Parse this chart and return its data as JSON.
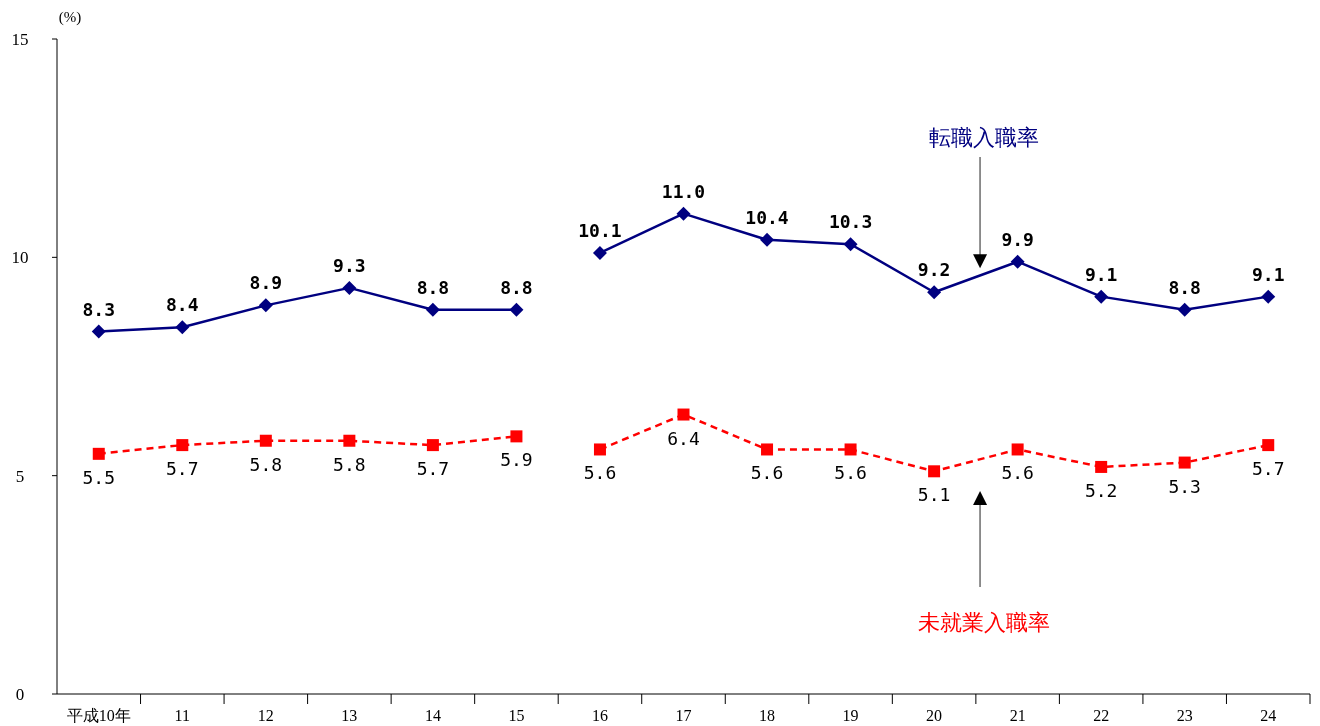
{
  "chart_data": {
    "type": "line",
    "ylabel": "(%)",
    "categories": [
      "平成10年",
      "11",
      "12",
      "13",
      "14",
      "15",
      "16",
      "17",
      "18",
      "19",
      "20",
      "21",
      "22",
      "23",
      "24"
    ],
    "series": [
      {
        "color": "#000080",
        "marker": "diamond",
        "line_style": "solid",
        "values": [
          8.3,
          8.4,
          8.9,
          9.3,
          8.8,
          8.8,
          null,
          null,
          null,
          null,
          null,
          null,
          null,
          null,
          null
        ],
        "value_labels": [
          "8.3",
          "8.4",
          "8.9",
          "9.3",
          "8.8",
          "8.8",
          null,
          null,
          null,
          null,
          null,
          null,
          null,
          null,
          null
        ]
      },
      {
        "name": "転職入職率",
        "color": "#000080",
        "marker": "diamond",
        "line_style": "solid",
        "values": [
          null,
          null,
          null,
          null,
          null,
          null,
          10.1,
          11.0,
          10.4,
          10.3,
          9.2,
          9.9,
          9.1,
          8.8,
          9.1
        ],
        "value_labels": [
          null,
          null,
          null,
          null,
          null,
          null,
          "10.1",
          "11.0",
          "10.4",
          "10.3",
          "9.2",
          "9.9",
          "9.1",
          "8.8",
          "9.1"
        ]
      },
      {
        "color": "#ff0000",
        "marker": "square",
        "line_style": "dashed",
        "values": [
          5.5,
          5.7,
          5.8,
          5.8,
          5.7,
          5.9,
          null,
          null,
          null,
          null,
          null,
          null,
          null,
          null,
          null
        ],
        "value_labels": [
          "5.5",
          "5.7",
          "5.8",
          "5.8",
          "5.7",
          "5.9",
          null,
          null,
          null,
          null,
          null,
          null,
          null,
          null,
          null
        ]
      },
      {
        "name": "未就業入職率",
        "color": "#ff0000",
        "marker": "square",
        "line_style": "dashed",
        "values": [
          null,
          null,
          null,
          null,
          null,
          null,
          5.6,
          6.4,
          5.6,
          5.6,
          5.1,
          5.6,
          5.2,
          5.3,
          5.7
        ],
        "value_labels": [
          null,
          null,
          null,
          null,
          null,
          null,
          "5.6",
          "6.4",
          "5.6",
          "5.6",
          "5.1",
          "5.6",
          "5.2",
          "5.3",
          "5.7"
        ]
      }
    ],
    "ylim": [
      0,
      15
    ],
    "yticks": [
      0,
      5,
      10,
      15
    ],
    "data_labels": true
  }
}
